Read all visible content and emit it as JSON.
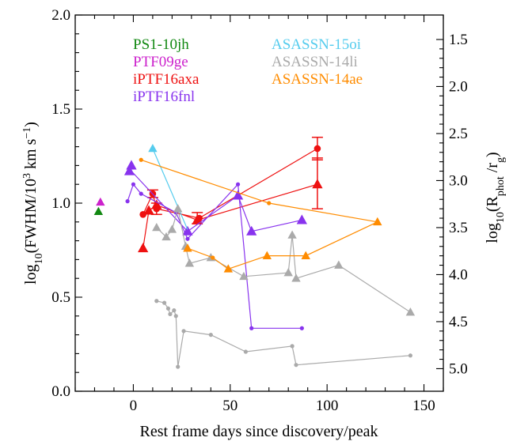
{
  "chart_data": {
    "type": "scatter",
    "xlabel": "Rest frame days since discovery/peak",
    "ylabel_parts": {
      "base": "log",
      "base_sub": "10",
      "open": "(FWHM/10",
      "exp": "3",
      "mid": " km s",
      "exp2": "−1",
      "close": ")"
    },
    "y2label_parts": {
      "base": "log",
      "base_sub": "10",
      "open": "(R",
      "sub1": "phot",
      "mid": " /r",
      "sub2": "g",
      "close": ")"
    },
    "xlim": [
      -30,
      160
    ],
    "ylim": [
      0.0,
      2.0
    ],
    "y2_ticks": [
      {
        "label": "1.5",
        "y": 1.87
      },
      {
        "label": "2.0",
        "y": 1.62
      },
      {
        "label": "2.5",
        "y": 1.37
      },
      {
        "label": "3.0",
        "y": 1.12
      },
      {
        "label": "3.5",
        "y": 0.87
      },
      {
        "label": "4.0",
        "y": 0.62
      },
      {
        "label": "4.5",
        "y": 0.37
      },
      {
        "label": "5.0",
        "y": 0.12
      }
    ],
    "x_tick_labels": [
      "0",
      "50",
      "100",
      "150"
    ],
    "y_tick_labels": [
      "0.0",
      "0.5",
      "1.0",
      "1.5",
      "2.0"
    ],
    "series": [
      {
        "name": "PS1-10jh",
        "color": "#118811",
        "lines": [],
        "triangles": [
          [
            -18,
            0.955
          ]
        ],
        "dots": []
      },
      {
        "name": "PTF09ge",
        "color": "#cc22cc",
        "lines": [],
        "triangles": [
          [
            -17,
            1.005
          ]
        ],
        "dots": []
      },
      {
        "name": "iPTF16axa",
        "color": "#ee1111",
        "lines": [
          [
            [
              5,
              0.94
            ],
            [
              10,
              1.05
            ],
            [
              12,
              0.97
            ],
            [
              34,
              0.92
            ],
            [
              95,
              1.29
            ]
          ],
          [
            [
              5,
              0.76
            ],
            [
              8,
              0.96
            ],
            [
              12,
              0.99
            ],
            [
              33,
              0.91
            ],
            [
              95,
              1.1
            ]
          ]
        ],
        "triangles": [
          [
            5,
            0.76
          ],
          [
            8,
            0.96
          ],
          [
            12,
            0.99
          ],
          [
            33,
            0.91
          ],
          [
            95,
            1.1
          ]
        ],
        "dots": [
          [
            5,
            0.94
          ],
          [
            10,
            1.05
          ],
          [
            12,
            0.97
          ],
          [
            34,
            0.92
          ],
          [
            95,
            1.29
          ]
        ],
        "errorbars": [
          [
            95,
            1.29,
            0.06,
            0.06
          ],
          [
            95,
            1.1,
            0.14,
            0.13
          ],
          [
            10,
            1.05,
            0.02,
            0.02
          ],
          [
            12,
            0.97,
            0.03,
            0.03
          ],
          [
            33,
            0.92,
            0.03,
            0.03
          ]
        ]
      },
      {
        "name": "iPTF16fnl",
        "color": "#8833ee",
        "lines": [
          [
            [
              -1,
              1.17
            ],
            [
              28,
              0.85
            ],
            [
              54,
              1.04
            ],
            [
              61,
              0.85
            ],
            [
              87,
              0.91
            ]
          ],
          [
            [
              -3,
              1.01
            ],
            [
              0,
              1.1
            ],
            [
              4,
              1.05
            ],
            [
              22,
              0.95
            ],
            [
              28,
              0.81
            ],
            [
              54,
              1.1
            ],
            [
              61,
              0.335
            ],
            [
              87,
              0.335
            ]
          ]
        ],
        "triangles": [
          [
            -2,
            1.17
          ],
          [
            -1,
            1.2
          ],
          [
            28,
            0.85
          ],
          [
            54,
            1.04
          ],
          [
            61,
            0.85
          ],
          [
            87,
            0.91
          ]
        ],
        "dots": [
          [
            -3,
            1.01
          ],
          [
            0,
            1.1
          ],
          [
            4,
            1.05
          ],
          [
            22,
            0.95
          ],
          [
            28,
            0.81
          ],
          [
            54,
            1.1
          ],
          [
            61,
            0.335
          ],
          [
            87,
            0.335
          ]
        ]
      },
      {
        "name": "ASASSN-15oi",
        "color": "#55ccee",
        "lines": [
          [
            [
              10,
              1.29
            ],
            [
              28,
              0.86
            ]
          ]
        ],
        "triangles": [
          [
            10,
            1.29
          ]
        ],
        "dots": []
      },
      {
        "name": "ASASSN-14li",
        "color": "#aaaaaa",
        "lines": [
          [
            [
              12,
              0.87
            ],
            [
              17,
              0.82
            ],
            [
              20,
              0.86
            ],
            [
              23,
              0.97
            ],
            [
              27,
              0.77
            ],
            [
              29,
              0.68
            ],
            [
              40,
              0.71
            ],
            [
              57,
              0.61
            ],
            [
              80,
              0.63
            ],
            [
              82,
              0.83
            ],
            [
              84,
              0.6
            ],
            [
              106,
              0.67
            ],
            [
              143,
              0.42
            ]
          ],
          [
            [
              12,
              0.48
            ],
            [
              16,
              0.47
            ],
            [
              18,
              0.44
            ],
            [
              19,
              0.41
            ],
            [
              21,
              0.43
            ],
            [
              22,
              0.4
            ],
            [
              23,
              0.13
            ],
            [
              26,
              0.32
            ],
            [
              40,
              0.3
            ],
            [
              58,
              0.21
            ],
            [
              82,
              0.24
            ],
            [
              84,
              0.14
            ],
            [
              143,
              0.19
            ]
          ]
        ],
        "triangles": [
          [
            12,
            0.87
          ],
          [
            17,
            0.82
          ],
          [
            20,
            0.86
          ],
          [
            23,
            0.97
          ],
          [
            27,
            0.77
          ],
          [
            29,
            0.68
          ],
          [
            40,
            0.71
          ],
          [
            57,
            0.61
          ],
          [
            80,
            0.63
          ],
          [
            82,
            0.83
          ],
          [
            84,
            0.6
          ],
          [
            106,
            0.67
          ],
          [
            143,
            0.42
          ]
        ],
        "dots": [
          [
            12,
            0.48
          ],
          [
            16,
            0.47
          ],
          [
            18,
            0.44
          ],
          [
            19,
            0.41
          ],
          [
            21,
            0.43
          ],
          [
            22,
            0.4
          ],
          [
            23,
            0.13
          ],
          [
            26,
            0.32
          ],
          [
            40,
            0.3
          ],
          [
            58,
            0.21
          ],
          [
            82,
            0.24
          ],
          [
            84,
            0.14
          ],
          [
            143,
            0.19
          ]
        ]
      },
      {
        "name": "ASASSN-14ae",
        "color": "#ff8c00",
        "lines": [
          [
            [
              28,
              0.76
            ],
            [
              41,
              0.71
            ],
            [
              49,
              0.65
            ],
            [
              69,
              0.72
            ],
            [
              89,
              0.72
            ],
            [
              126,
              0.9
            ]
          ],
          [
            [
              4,
              1.23
            ],
            [
              70,
              1.0
            ],
            [
              126,
              0.9
            ]
          ]
        ],
        "triangles": [
          [
            28,
            0.76
          ],
          [
            49,
            0.65
          ],
          [
            69,
            0.72
          ],
          [
            89,
            0.72
          ],
          [
            126,
            0.9
          ]
        ],
        "dots": [
          [
            4,
            1.23
          ],
          [
            41,
            0.71
          ],
          [
            70,
            1.0
          ]
        ]
      }
    ]
  }
}
